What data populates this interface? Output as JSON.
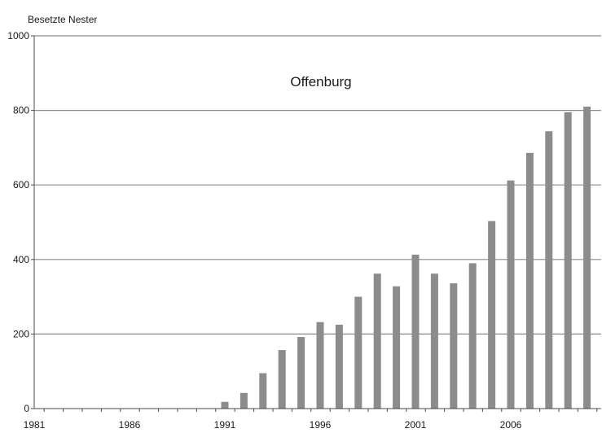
{
  "chart_data": {
    "type": "bar",
    "title": "Offenburg",
    "ylabel": "Besetzte Nester",
    "xlabel": "",
    "ylim": [
      0,
      1000
    ],
    "yticks": [
      0,
      200,
      400,
      600,
      800,
      1000
    ],
    "xtick_labels": [
      "1981",
      "1986",
      "1991",
      "1996",
      "2001",
      "2006"
    ],
    "grid": true,
    "bar_color": "#8c8c8c",
    "categories": [
      "1991",
      "1992",
      "1993",
      "1994",
      "1995",
      "1996",
      "1997",
      "1998",
      "1999",
      "2000",
      "2001",
      "2002",
      "2003",
      "2004",
      "2005",
      "2006",
      "2007",
      "2008",
      "2009",
      "2010"
    ],
    "values": [
      18,
      42,
      95,
      157,
      192,
      232,
      225,
      300,
      362,
      328,
      413,
      362,
      336,
      390,
      503,
      612,
      686,
      744,
      795,
      810
    ]
  }
}
